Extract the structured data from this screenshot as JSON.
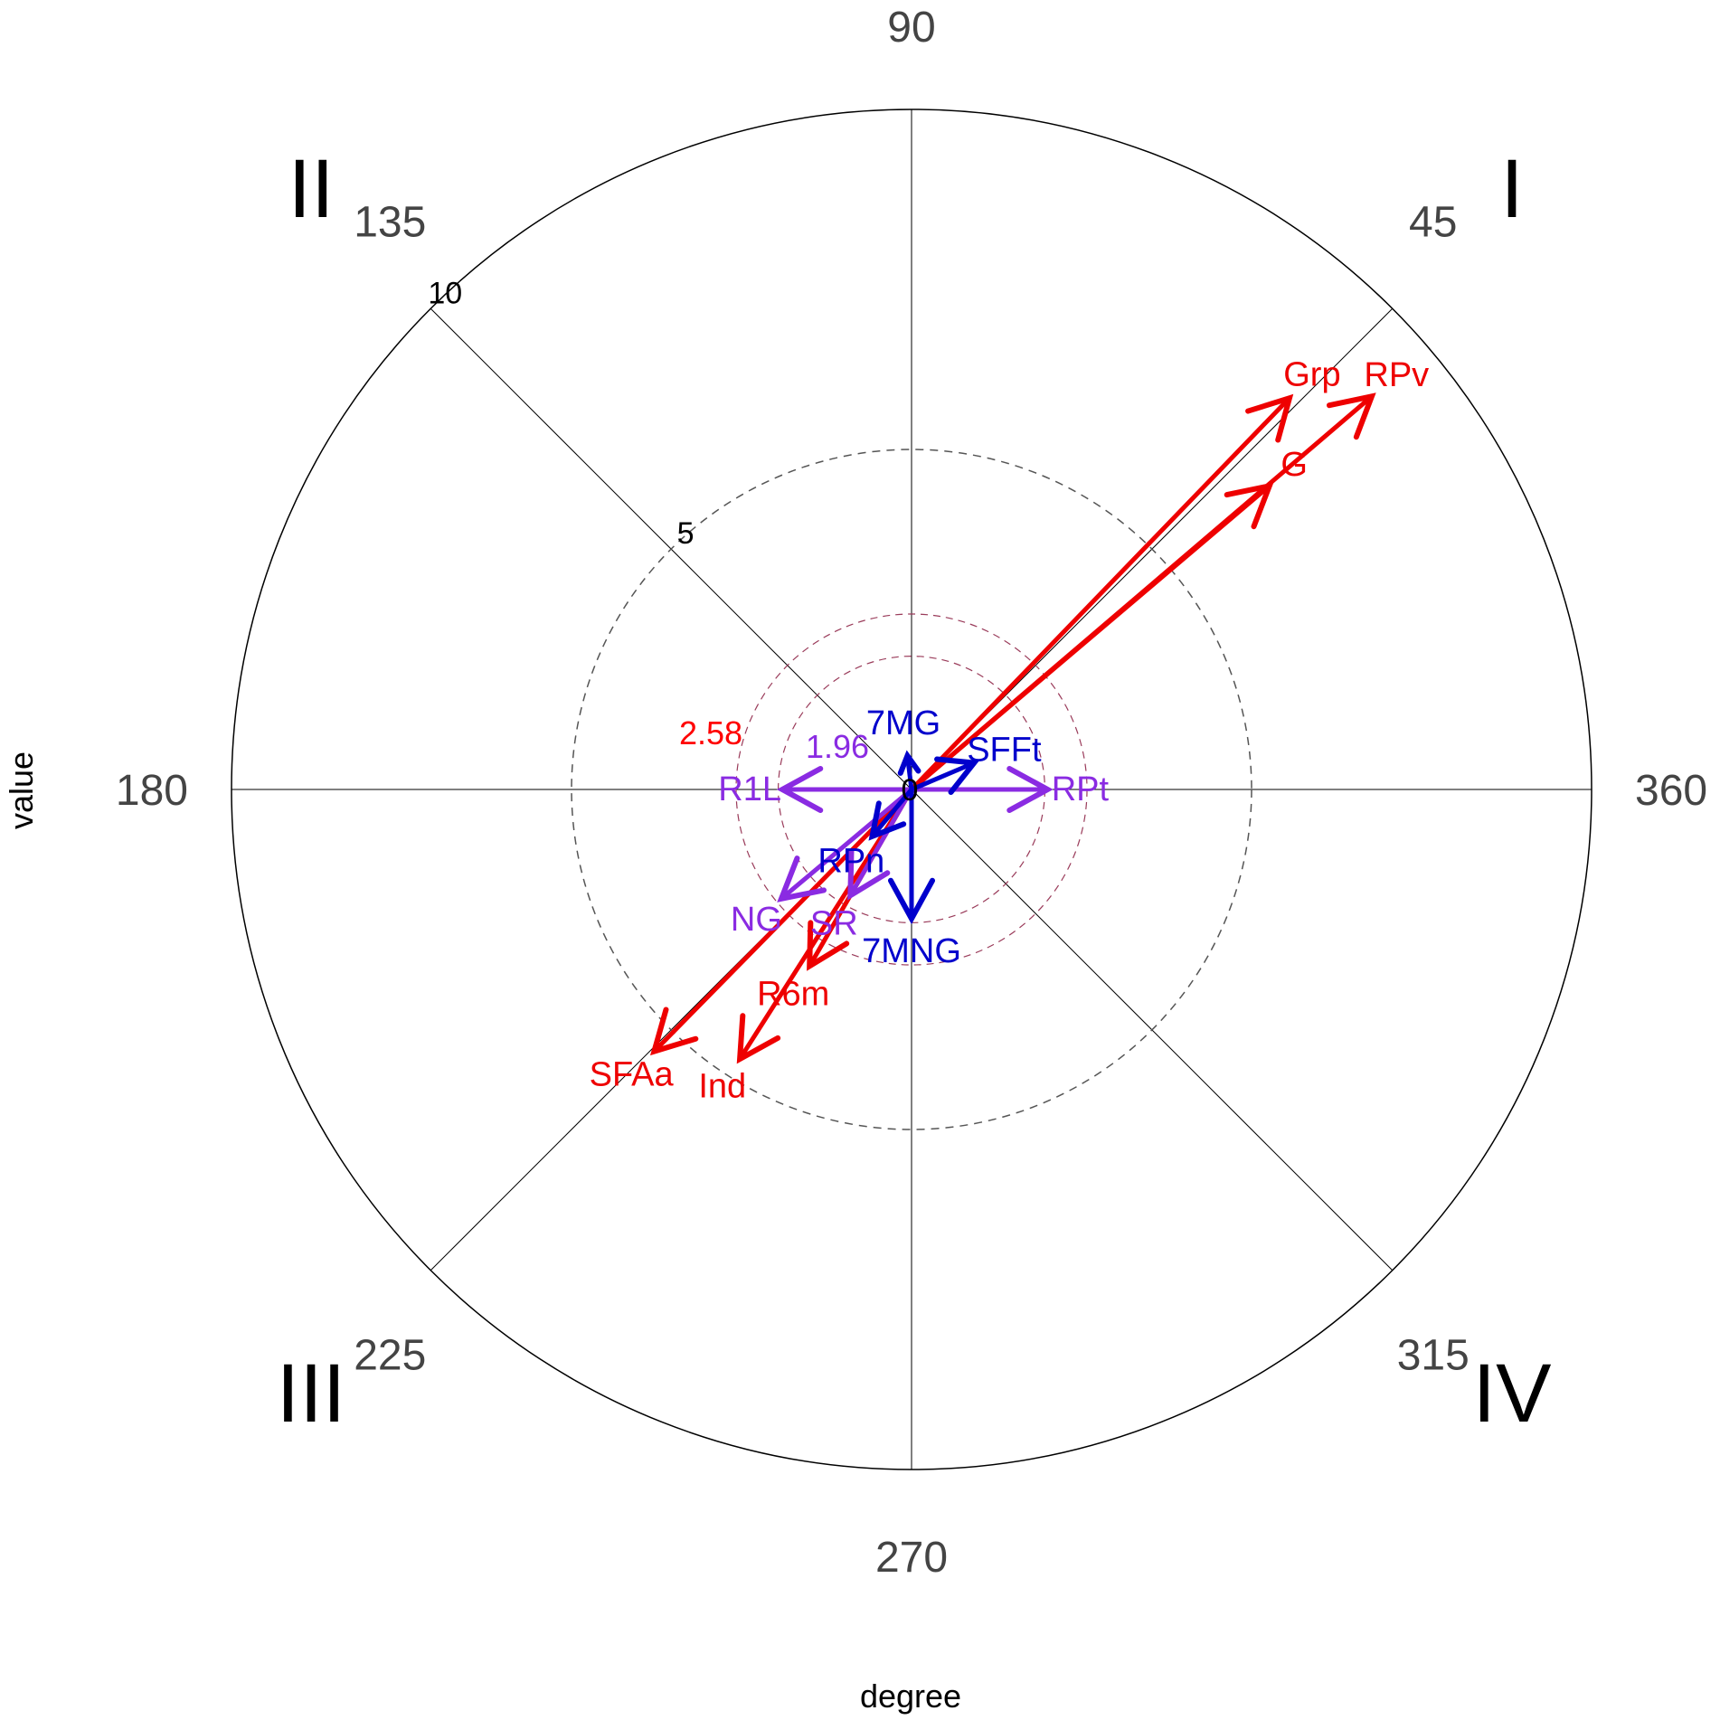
{
  "chart_data": {
    "type": "polar-vector",
    "xlabel": "degree",
    "ylabel": "value",
    "rmax": 10,
    "ring_ticks": [
      {
        "value": 5,
        "label": "5"
      },
      {
        "value": 10,
        "label": "10"
      }
    ],
    "center_label": "0",
    "degree_ticks": [
      {
        "angle": 90,
        "label": "90"
      },
      {
        "angle": 45,
        "label": "45"
      },
      {
        "angle": 135,
        "label": "135"
      },
      {
        "angle": 180,
        "label": "180"
      },
      {
        "angle": 225,
        "label": "225"
      },
      {
        "angle": 270,
        "label": "270"
      },
      {
        "angle": 315,
        "label": "315"
      },
      {
        "angle": 360,
        "label": "360"
      }
    ],
    "quadrants": [
      {
        "angle": 45,
        "label": "I"
      },
      {
        "angle": 135,
        "label": "II"
      },
      {
        "angle": 225,
        "label": "III"
      },
      {
        "angle": 315,
        "label": "IV"
      }
    ],
    "thresholds": [
      {
        "value": 1.96,
        "label": "1.96",
        "color": "#8a2be2"
      },
      {
        "value": 2.58,
        "label": "2.58",
        "color": "#ff0000"
      }
    ],
    "colors": {
      "red": "#ee0000",
      "purple": "#8a2be2",
      "blue": "#0000cc"
    },
    "vectors": [
      {
        "label": "Grp",
        "angle": 46.0,
        "length": 8.0,
        "color": "#ee0000"
      },
      {
        "label": "RPv",
        "angle": 40.5,
        "length": 8.9,
        "color": "#ee0000"
      },
      {
        "label": "G",
        "angle": 40.3,
        "length": 6.9,
        "color": "#ee0000"
      },
      {
        "label": "SFAa",
        "angle": 225.5,
        "length": 5.4,
        "color": "#ee0000"
      },
      {
        "label": "Ind",
        "angle": 237.5,
        "length": 4.7,
        "color": "#ee0000"
      },
      {
        "label": "R6m",
        "angle": 240.0,
        "length": 3.0,
        "color": "#ee0000"
      },
      {
        "label": "R1L",
        "angle": 180.0,
        "length": 1.9,
        "color": "#8a2be2"
      },
      {
        "label": "RPt",
        "angle": 360.0,
        "length": 2.0,
        "color": "#8a2be2"
      },
      {
        "label": "NG",
        "angle": 220.0,
        "length": 2.5,
        "color": "#8a2be2"
      },
      {
        "label": "SR",
        "angle": 240.0,
        "length": 1.8,
        "color": "#8a2be2"
      },
      {
        "label": "7MG",
        "angle": 97.0,
        "length": 0.5,
        "color": "#0000cc"
      },
      {
        "label": "SFFt",
        "angle": 23.0,
        "length": 1.0,
        "color": "#0000cc"
      },
      {
        "label": "RPn",
        "angle": 230.0,
        "length": 0.9,
        "color": "#0000cc"
      },
      {
        "label": "7MNG",
        "angle": 270.0,
        "length": 1.9,
        "color": "#0000cc"
      }
    ]
  }
}
